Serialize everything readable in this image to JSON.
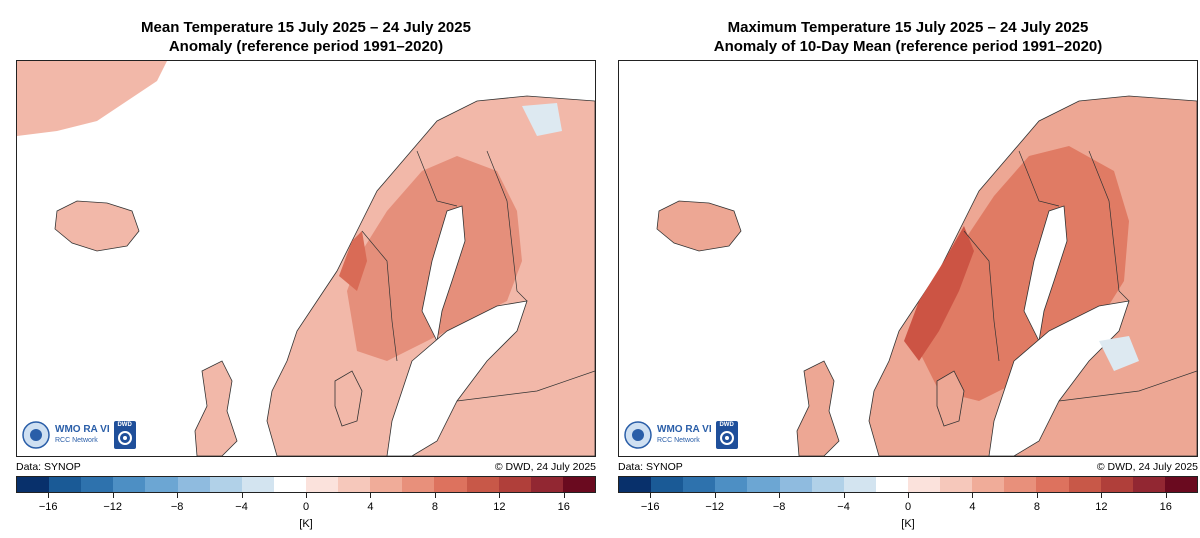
{
  "colorbar_colors": [
    "#08306b",
    "#1a5a96",
    "#2e72ad",
    "#4d8fc4",
    "#6ca6d3",
    "#8fbbdf",
    "#b1d1e8",
    "#d3e4f0",
    "#ffffff",
    "#fbe2dc",
    "#f6c8bb",
    "#f0ac99",
    "#e8907b",
    "#dd725e",
    "#c85848",
    "#b03f3a",
    "#922732",
    "#6a0a1f"
  ],
  "colorbar_ticks": [
    "−16",
    "−12",
    "−8",
    "−4",
    "0",
    "4",
    "8",
    "12",
    "16"
  ],
  "colorbar_tick_values": [
    -16,
    -12,
    -8,
    -4,
    0,
    4,
    8,
    12,
    16
  ],
  "colorbar_range": [
    -18,
    18
  ],
  "panels": [
    {
      "title_line1": "Mean Temperature 15 July 2025 – 24 July 2025",
      "title_line2": "Anomaly (reference period 1991–2020)",
      "data_source": "Data: SYNOP",
      "copyright": "© DWD, 24 July 2025",
      "unit": "[K]",
      "logo_text": "WMO RA VI",
      "logo_subtext": "RCC Network",
      "logo_dwd": "DWD",
      "anomaly_fill": "#f2b8a9",
      "anomaly_strong_fill": "#e58f7b",
      "anomaly_peak_fill": "#d96b56"
    },
    {
      "title_line1": "Maximum Temperature 15 July 2025 – 24 July 2025",
      "title_line2": "Anomaly of 10-Day Mean (reference period 1991–2020)",
      "data_source": "Data: SYNOP",
      "copyright": "© DWD, 24 July 2025",
      "unit": "[K]",
      "logo_text": "WMO RA VI",
      "logo_subtext": "RCC Network",
      "logo_dwd": "DWD",
      "anomaly_fill": "#eda794",
      "anomaly_strong_fill": "#e07b64",
      "anomaly_peak_fill": "#cc5444"
    }
  ]
}
